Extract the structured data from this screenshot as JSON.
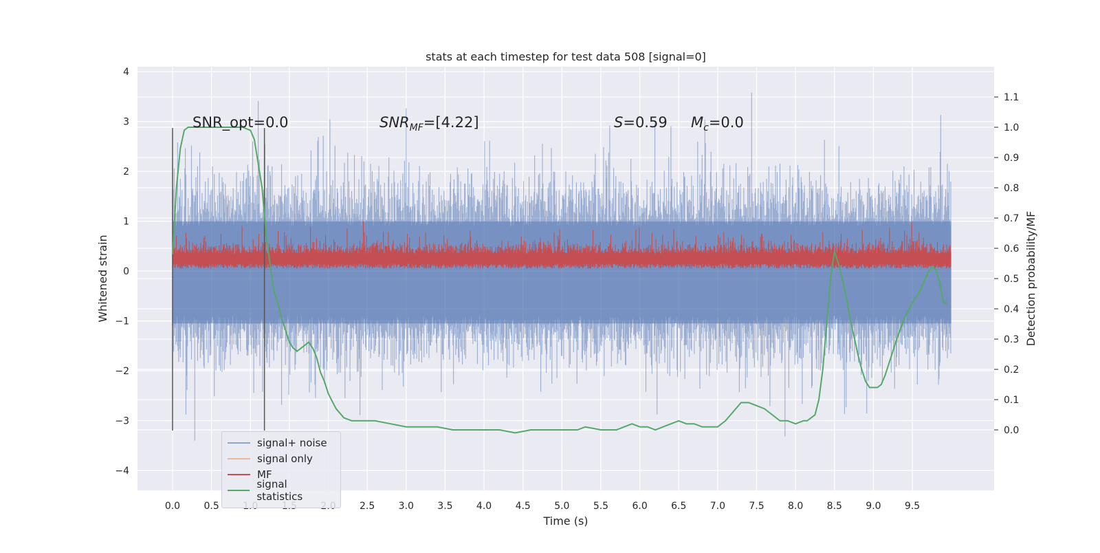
{
  "chart_data": {
    "type": "line",
    "title": "stats at each timestep for test data 508 [signal=0]",
    "xlabel": "Time (s)",
    "ylabel_left": "Whitened strain",
    "ylabel_right": "Detection probability/MF",
    "xlim": [
      -0.45,
      10.55
    ],
    "ylim_left": [
      -4.4,
      4.1
    ],
    "ylim_right": [
      -0.2,
      1.2
    ],
    "x_ticks": [
      "0.0",
      "0.5",
      "1.0",
      "1.5",
      "2.0",
      "2.5",
      "3.0",
      "3.5",
      "4.0",
      "4.5",
      "5.0",
      "5.5",
      "6.0",
      "6.5",
      "7.0",
      "7.5",
      "8.0",
      "8.5",
      "9.0",
      "9.5"
    ],
    "y_left_ticks": [
      "4",
      "3",
      "2",
      "1",
      "0",
      "−1",
      "−2",
      "−3",
      "−4"
    ],
    "y_right_ticks": [
      "1.1",
      "1.0",
      "0.9",
      "0.8",
      "0.7",
      "0.6",
      "0.5",
      "0.4",
      "0.3",
      "0.2",
      "0.1",
      "0.0"
    ],
    "grid": true,
    "legend_position": "lower-left",
    "annotations": {
      "snr_opt": "SNR_opt=0.0",
      "snr_mf_main": "SNR",
      "snr_mf_sub": "MF",
      "snr_mf_value": "=[4.22]",
      "s_main": "S",
      "s_value": "=0.59",
      "mc_main": "M",
      "mc_sub": "c",
      "mc_value": "=0.0"
    },
    "vlines_x": [
      0.0,
      1.18
    ],
    "series": [
      {
        "name": "signal+ noise",
        "color": "#4c72b0",
        "description": "noise band roughly between -2.0 and 2.0, peaks to about ±3.5"
      },
      {
        "name": "signal only",
        "color": "#dd8452"
      },
      {
        "name": "MF",
        "color": "#c44e52",
        "description": "matched filter output around 0.0 to 0.6, peaks ~1.0"
      },
      {
        "name": "signal statistics",
        "color": "#55a868",
        "x": [
          0.0,
          0.05,
          0.1,
          0.15,
          0.2,
          0.3,
          0.4,
          0.5,
          0.6,
          0.7,
          0.8,
          0.9,
          1.0,
          1.05,
          1.1,
          1.15,
          1.2,
          1.25,
          1.3,
          1.35,
          1.4,
          1.45,
          1.5,
          1.55,
          1.6,
          1.65,
          1.7,
          1.75,
          1.8,
          1.85,
          1.9,
          1.95,
          2.0,
          2.1,
          2.2,
          2.3,
          2.4,
          2.6,
          2.8,
          3.0,
          3.2,
          3.4,
          3.6,
          3.8,
          4.0,
          4.2,
          4.4,
          4.6,
          4.8,
          5.0,
          5.2,
          5.3,
          5.5,
          5.6,
          5.7,
          5.8,
          5.9,
          6.0,
          6.1,
          6.2,
          6.3,
          6.4,
          6.5,
          6.6,
          6.7,
          6.8,
          6.9,
          7.0,
          7.1,
          7.2,
          7.3,
          7.4,
          7.5,
          7.6,
          7.7,
          7.8,
          7.9,
          8.0,
          8.1,
          8.15,
          8.2,
          8.25,
          8.3,
          8.35,
          8.4,
          8.45,
          8.5,
          8.55,
          8.6,
          8.65,
          8.7,
          8.75,
          8.8,
          8.85,
          8.9,
          8.95,
          9.0,
          9.05,
          9.1,
          9.15,
          9.2,
          9.3,
          9.4,
          9.5,
          9.6,
          9.7,
          9.75,
          9.8,
          9.85,
          9.9,
          9.95
        ],
        "values": [
          0.58,
          0.8,
          0.93,
          0.99,
          1.0,
          1.0,
          1.0,
          1.0,
          1.0,
          1.0,
          1.0,
          1.0,
          0.99,
          0.96,
          0.88,
          0.8,
          0.65,
          0.55,
          0.46,
          0.42,
          0.37,
          0.33,
          0.29,
          0.27,
          0.26,
          0.27,
          0.28,
          0.29,
          0.27,
          0.24,
          0.19,
          0.16,
          0.12,
          0.07,
          0.04,
          0.03,
          0.03,
          0.03,
          0.02,
          0.01,
          0.01,
          0.01,
          0.0,
          0.0,
          0.0,
          0.0,
          -0.01,
          0.0,
          0.0,
          0.0,
          0.0,
          0.01,
          0.0,
          0.0,
          0.0,
          0.01,
          0.02,
          0.01,
          0.01,
          0.0,
          0.01,
          0.02,
          0.03,
          0.02,
          0.02,
          0.01,
          0.01,
          0.01,
          0.03,
          0.06,
          0.09,
          0.09,
          0.08,
          0.07,
          0.05,
          0.03,
          0.03,
          0.02,
          0.03,
          0.03,
          0.04,
          0.05,
          0.1,
          0.2,
          0.35,
          0.5,
          0.59,
          0.55,
          0.5,
          0.44,
          0.37,
          0.31,
          0.25,
          0.2,
          0.16,
          0.14,
          0.14,
          0.14,
          0.15,
          0.18,
          0.22,
          0.3,
          0.37,
          0.42,
          0.46,
          0.52,
          0.54,
          0.53,
          0.49,
          0.42,
          0.42
        ]
      }
    ]
  }
}
